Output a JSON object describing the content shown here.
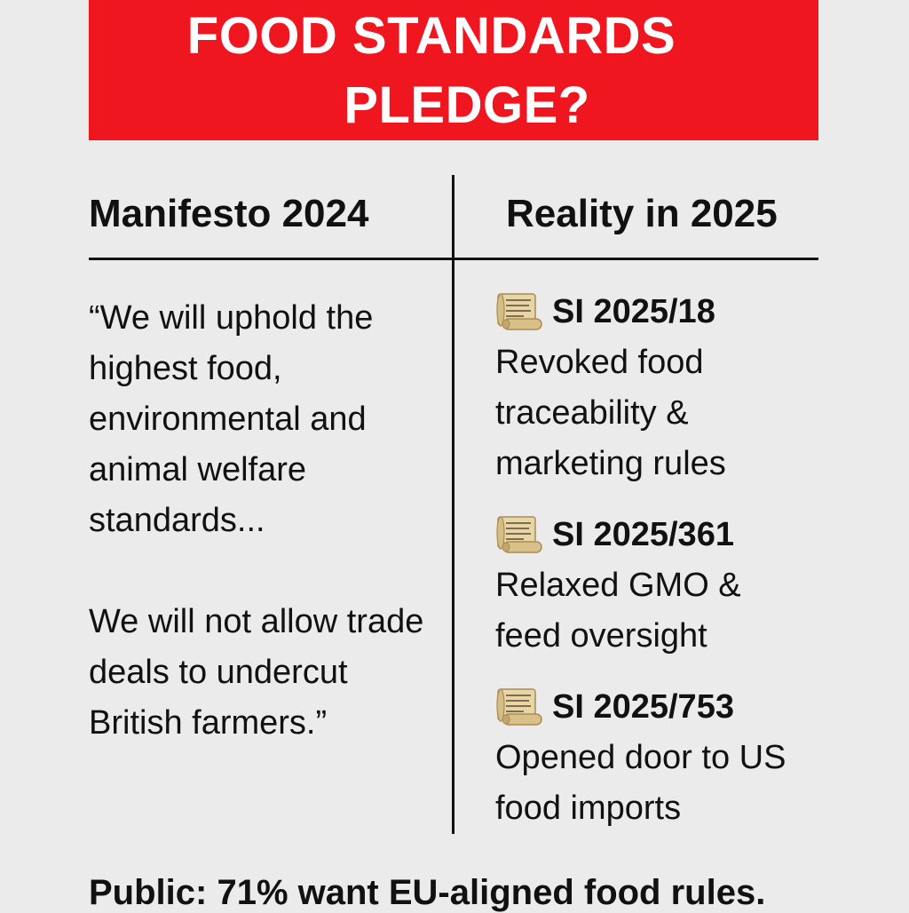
{
  "banner": {
    "title_line1": "FOOD STANDARDS",
    "title_line2": "PLEDGE?"
  },
  "columns": {
    "left_header": "Manifesto 2024",
    "right_header": "Reality in 2025"
  },
  "manifesto": {
    "quote_part1": "“We will uphold the highest food, environmental and animal welfare standards...",
    "quote_part2": "We will not allow trade deals to undercut British farmers.”"
  },
  "reality": {
    "items": [
      {
        "icon": "scroll-icon",
        "code": "SI 2025/18",
        "description": "Revoked food traceability & marketing rules"
      },
      {
        "icon": "scroll-icon",
        "code": "SI 2025/361",
        "description": "Relaxed GMO & feed oversight"
      },
      {
        "icon": "scroll-icon",
        "code": "SI 2025/753",
        "description": "Opened door to US food imports"
      }
    ]
  },
  "footer": {
    "text": "Public: 71% want EU-aligned food rules."
  },
  "colors": {
    "banner": "#f01620",
    "background": "#ebebeb",
    "text": "#111111"
  }
}
